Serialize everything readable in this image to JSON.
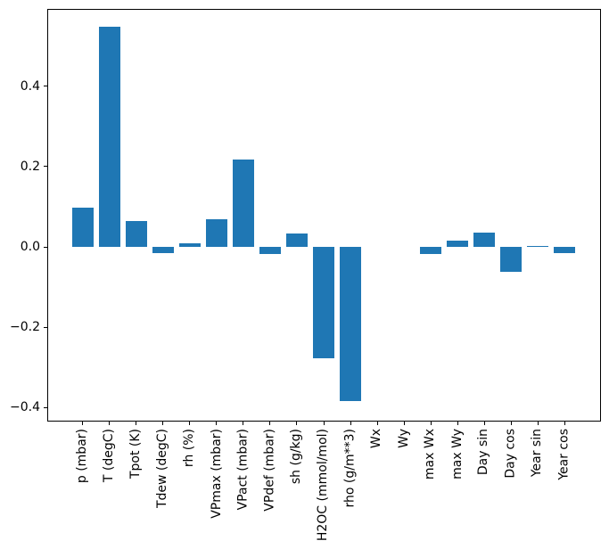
{
  "figure": {
    "background_color": "#ffffff",
    "bar_color": "#1f77b4",
    "spine_color": "#000000",
    "text_color": "#000000"
  },
  "chart_data": {
    "type": "bar",
    "title": "",
    "xlabel": "",
    "ylabel": "",
    "categories": [
      "p (mbar)",
      "T (degC)",
      "Tpot (K)",
      "Tdew (degC)",
      "rh (%)",
      "VPmax (mbar)",
      "VPact (mbar)",
      "VPdef (mbar)",
      "sh (g/kg)",
      "H2OC (mmol/mol)",
      "rho (g/m**3)",
      "Wx",
      "Wy",
      "max Wx",
      "max Wy",
      "Day sin",
      "Day cos",
      "Year sin",
      "Year cos"
    ],
    "values": [
      0.098,
      0.549,
      0.064,
      -0.016,
      0.01,
      0.068,
      0.218,
      -0.018,
      0.033,
      -0.278,
      -0.385,
      0.0,
      0.0,
      -0.018,
      0.016,
      0.036,
      -0.062,
      0.002,
      -0.016
    ],
    "yticks": [
      0.4,
      0.2,
      0.0,
      -0.2,
      -0.4
    ],
    "ytick_labels": [
      "0.4",
      "0.2",
      "0.0",
      "−0.2",
      "−0.4"
    ],
    "ylim": [
      -0.4333,
      0.5933
    ],
    "xlim": [
      -1.3333,
      19.3333
    ],
    "bar_width_units": 0.8,
    "xtick_rotation_deg": 90,
    "grid": false,
    "legend": null
  }
}
